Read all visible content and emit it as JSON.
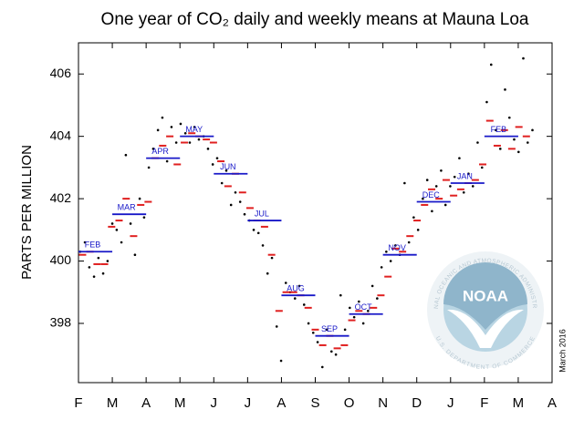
{
  "chart_data": {
    "type": "scatter",
    "title": "One year of CO₂ daily and weekly means at Mauna Loa",
    "y_label": "PARTS PER MILLION",
    "date_note": "March 2016",
    "logo": {
      "name": "NOAA",
      "top_text": "NATIONAL OCEANIC AND ATMOSPHERIC ADMINISTRATION",
      "bottom_text": "U.S. DEPARTMENT OF COMMERCE"
    },
    "xlim": [
      0,
      14
    ],
    "xticks": [
      {
        "value": 0,
        "label": "F"
      },
      {
        "value": 1,
        "label": "M"
      },
      {
        "value": 2,
        "label": "A"
      },
      {
        "value": 3,
        "label": "M"
      },
      {
        "value": 4,
        "label": "J"
      },
      {
        "value": 5,
        "label": "J"
      },
      {
        "value": 6,
        "label": "A"
      },
      {
        "value": 7,
        "label": "S"
      },
      {
        "value": 8,
        "label": "O"
      },
      {
        "value": 9,
        "label": "N"
      },
      {
        "value": 10,
        "label": "D"
      },
      {
        "value": 11,
        "label": "J"
      },
      {
        "value": 12,
        "label": "F"
      },
      {
        "value": 13,
        "label": "M"
      },
      {
        "value": 14,
        "label": "A"
      }
    ],
    "ylim": [
      396.1,
      407.0
    ],
    "yticks": [
      398,
      400,
      402,
      404,
      406
    ],
    "daily": {
      "color": "#000000",
      "x": [
        0.05,
        0.19,
        0.32,
        0.46,
        0.59,
        0.73,
        0.86,
        1.0,
        1.13,
        1.27,
        1.4,
        1.54,
        1.67,
        1.81,
        1.94,
        2.08,
        2.21,
        2.35,
        2.48,
        2.62,
        2.75,
        2.89,
        3.02,
        3.16,
        3.29,
        3.43,
        3.56,
        3.7,
        3.83,
        3.97,
        4.1,
        4.24,
        4.37,
        4.51,
        4.64,
        4.78,
        4.91,
        5.05,
        5.18,
        5.32,
        5.45,
        5.59,
        5.72,
        5.86,
        5.99,
        6.13,
        6.26,
        6.4,
        6.53,
        6.67,
        6.8,
        6.94,
        7.07,
        7.21,
        7.34,
        7.48,
        7.61,
        7.75,
        7.88,
        8.02,
        8.15,
        8.29,
        8.42,
        8.56,
        8.69,
        8.83,
        8.96,
        9.1,
        9.23,
        9.37,
        9.5,
        9.64,
        9.77,
        9.91,
        10.04,
        10.18,
        10.31,
        10.45,
        10.58,
        10.72,
        10.85,
        10.99,
        11.12,
        11.26,
        11.39,
        11.53,
        11.66,
        11.8,
        11.93,
        12.07,
        12.2,
        12.34,
        12.47,
        12.61,
        12.74,
        12.88,
        13.01,
        13.15,
        13.28,
        13.42
      ],
      "values": [
        400.3,
        400.6,
        399.8,
        399.5,
        400.1,
        399.6,
        400.0,
        401.2,
        401.0,
        400.6,
        403.4,
        401.2,
        400.2,
        402.0,
        401.4,
        403.0,
        403.6,
        404.2,
        404.6,
        403.2,
        404.3,
        403.8,
        404.4,
        404.1,
        403.8,
        404.3,
        403.9,
        404.0,
        403.6,
        403.1,
        403.3,
        402.5,
        402.9,
        401.8,
        402.2,
        401.9,
        401.5,
        401.3,
        401.0,
        400.9,
        400.5,
        399.6,
        400.1,
        397.9,
        396.8,
        399.3,
        399.0,
        398.8,
        399.2,
        398.6,
        398.0,
        397.7,
        397.4,
        396.6,
        397.8,
        397.1,
        397.0,
        398.9,
        397.8,
        398.5,
        398.2,
        398.7,
        398.0,
        398.4,
        399.2,
        398.8,
        399.8,
        400.3,
        400.0,
        400.5,
        400.2,
        402.5,
        400.6,
        401.4,
        401.0,
        402.0,
        402.6,
        401.6,
        402.4,
        402.9,
        401.8,
        402.4,
        402.7,
        403.3,
        402.2,
        402.8,
        402.4,
        403.8,
        403.0,
        405.1,
        406.3,
        404.2,
        403.6,
        405.5,
        404.6,
        403.9,
        403.5,
        406.5,
        403.8,
        404.2
      ]
    },
    "weekly": {
      "color": "#e02020",
      "x": [
        0.12,
        0.34,
        0.55,
        0.77,
        0.98,
        1.2,
        1.41,
        1.63,
        1.84,
        2.06,
        2.27,
        2.49,
        2.7,
        2.92,
        3.13,
        3.35,
        3.56,
        3.78,
        3.99,
        4.21,
        4.42,
        4.64,
        4.85,
        5.07,
        5.28,
        5.5,
        5.71,
        5.93,
        6.14,
        6.36,
        6.57,
        6.79,
        7.0,
        7.22,
        7.43,
        7.65,
        7.86,
        8.08,
        8.29,
        8.51,
        8.72,
        8.94,
        9.15,
        9.37,
        9.58,
        9.8,
        10.01,
        10.23,
        10.44,
        10.66,
        10.87,
        11.09,
        11.3,
        11.52,
        11.73,
        11.95,
        12.16,
        12.38,
        12.59,
        12.81,
        13.02,
        13.24
      ],
      "values": [
        400.2,
        400.3,
        399.9,
        399.9,
        401.1,
        401.3,
        402.0,
        400.8,
        401.8,
        401.9,
        403.3,
        403.7,
        404.0,
        403.1,
        403.8,
        404.1,
        404.0,
        403.9,
        403.8,
        403.2,
        402.4,
        402.8,
        402.2,
        401.7,
        401.3,
        401.1,
        400.2,
        398.4,
        399.0,
        399.0,
        398.9,
        398.5,
        397.8,
        397.3,
        397.6,
        397.2,
        397.3,
        398.1,
        398.4,
        398.3,
        398.5,
        398.9,
        399.5,
        400.4,
        400.3,
        400.8,
        401.3,
        401.8,
        402.3,
        402.0,
        402.6,
        402.1,
        402.3,
        402.5,
        402.6,
        403.1,
        404.5,
        403.7,
        404.2,
        403.6,
        404.3,
        404.0
      ]
    },
    "monthly": {
      "color": "#1818c8",
      "labels": [
        "FEB",
        "MAR",
        "APR",
        "MAY",
        "JUN",
        "JUL",
        "AUG",
        "SEP",
        "OCT",
        "NOV",
        "DEC",
        "JAN",
        "FEB"
      ],
      "x": [
        0.5,
        1.5,
        2.5,
        3.5,
        4.5,
        5.5,
        6.5,
        7.5,
        8.5,
        9.5,
        10.5,
        11.5,
        12.5
      ],
      "values": [
        400.3,
        401.5,
        403.3,
        404.0,
        402.8,
        401.3,
        398.9,
        397.6,
        398.3,
        400.2,
        401.9,
        402.5,
        404.0
      ]
    }
  }
}
